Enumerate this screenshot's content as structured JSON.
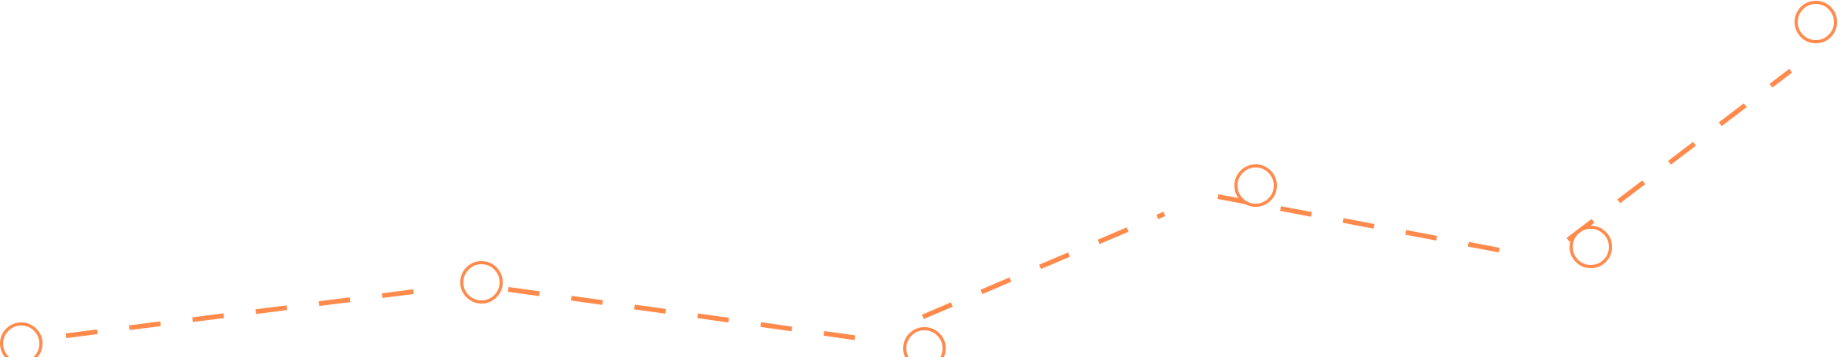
{
  "diagram": {
    "stroke_color": "#FF8A4C",
    "node_fill": "#FFFFFF",
    "node_count": 7
  }
}
